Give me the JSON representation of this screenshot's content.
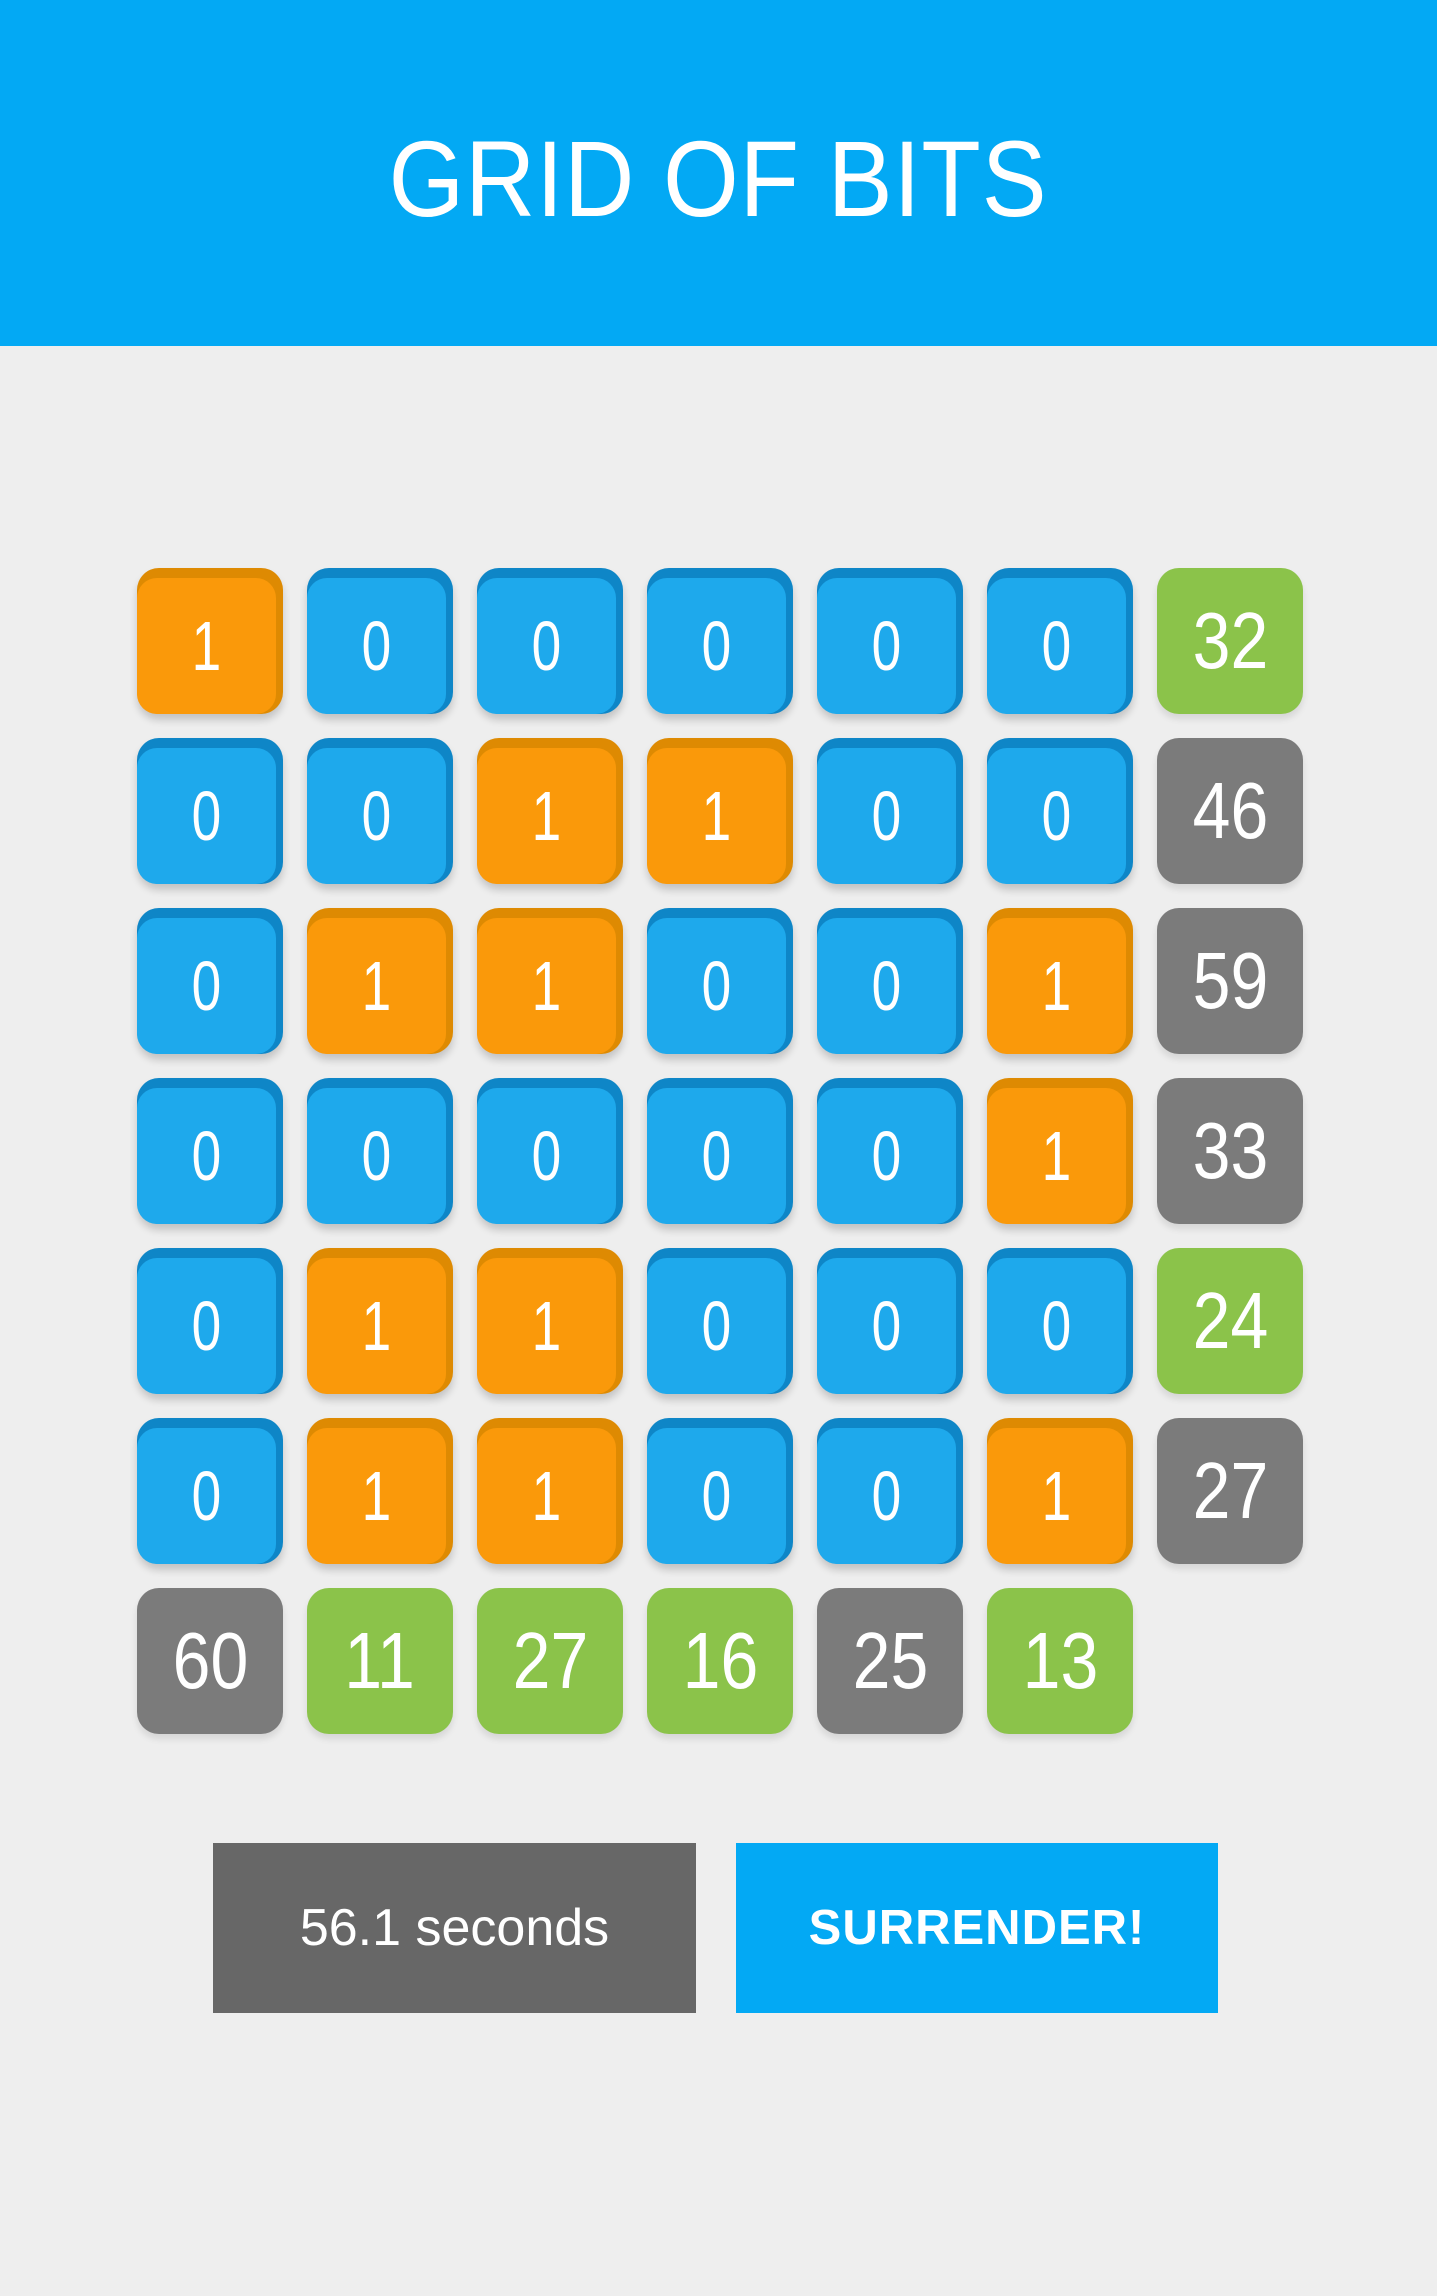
{
  "header": {
    "title": "GRID OF BITS"
  },
  "grid": {
    "bits": [
      [
        1,
        0,
        0,
        0,
        0,
        0
      ],
      [
        0,
        0,
        1,
        1,
        0,
        0
      ],
      [
        0,
        1,
        1,
        0,
        0,
        1
      ],
      [
        0,
        0,
        0,
        0,
        0,
        1
      ],
      [
        0,
        1,
        1,
        0,
        0,
        0
      ],
      [
        0,
        1,
        1,
        0,
        0,
        1
      ]
    ],
    "row_totals": [
      {
        "value": "32",
        "state": "green"
      },
      {
        "value": "46",
        "state": "gray"
      },
      {
        "value": "59",
        "state": "gray"
      },
      {
        "value": "33",
        "state": "gray"
      },
      {
        "value": "24",
        "state": "green"
      },
      {
        "value": "27",
        "state": "gray"
      }
    ],
    "col_totals": [
      {
        "value": "60",
        "state": "gray"
      },
      {
        "value": "11",
        "state": "green"
      },
      {
        "value": "27",
        "state": "green"
      },
      {
        "value": "16",
        "state": "green"
      },
      {
        "value": "25",
        "state": "gray"
      },
      {
        "value": "13",
        "state": "green"
      }
    ]
  },
  "footer": {
    "timer": "56.1 seconds",
    "surrender": "SURRENDER!"
  },
  "colors": {
    "blue_primary": "#03A9F4",
    "bit_blue": "#1EA9EC",
    "bit_blue_rim": "#0E86C7",
    "bit_orange": "#FA990A",
    "bit_orange_rim": "#DE8A02",
    "total_green": "#8BC34A",
    "total_gray": "#7B7B7B",
    "timer_gray": "#676767",
    "background": "#EEEEEE",
    "text_white": "#FFFFFF"
  }
}
